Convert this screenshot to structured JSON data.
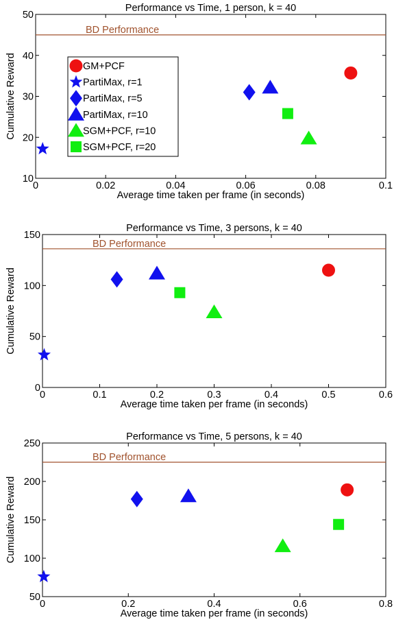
{
  "legend": {
    "entries": [
      {
        "label": "GM+PCF",
        "marker": "circle",
        "color": "#ee1111"
      },
      {
        "label": "PartiMax, r=1",
        "marker": "star",
        "color": "#1111ee"
      },
      {
        "label": "PartiMax, r=5",
        "marker": "diamond",
        "color": "#1111ee"
      },
      {
        "label": "PartiMax, r=10",
        "marker": "triangle",
        "color": "#1111ee"
      },
      {
        "label": "SGM+PCF, r=10",
        "marker": "triangle",
        "color": "#11ee11"
      },
      {
        "label": "SGM+PCF, r=20",
        "marker": "square",
        "color": "#11ee11"
      }
    ]
  },
  "colors": {
    "baseline": "#a0522d",
    "axis": "#000000"
  },
  "chart_data": [
    {
      "type": "scatter",
      "title": "Performance vs Time, 1 person, k = 40",
      "xlabel": "Average time taken per frame (in seconds)",
      "ylabel": "Cumulative Reward",
      "xlim": [
        0,
        0.1
      ],
      "ylim": [
        10,
        50
      ],
      "xticks": [
        "0",
        "0.02",
        "0.04",
        "0.06",
        "0.08",
        "0.1"
      ],
      "yticks": [
        "10",
        "20",
        "30",
        "40",
        "50"
      ],
      "hline": {
        "label": "BD Performance",
        "y": 45
      },
      "legend_position": "top-left",
      "series": [
        {
          "name": "GM+PCF",
          "points": [
            [
              0.09,
              35.7
            ]
          ]
        },
        {
          "name": "PartiMax, r=1",
          "points": [
            [
              0.002,
              17.2
            ]
          ]
        },
        {
          "name": "PartiMax, r=5",
          "points": [
            [
              0.061,
              31
            ]
          ]
        },
        {
          "name": "PartiMax, r=10",
          "points": [
            [
              0.067,
              32.2
            ]
          ]
        },
        {
          "name": "SGM+PCF, r=10",
          "points": [
            [
              0.078,
              19.8
            ]
          ]
        },
        {
          "name": "SGM+PCF, r=20",
          "points": [
            [
              0.072,
              25.8
            ]
          ]
        }
      ]
    },
    {
      "type": "scatter",
      "title": "Performance vs Time, 3 persons, k = 40",
      "xlabel": "Average time taken per frame (in seconds)",
      "ylabel": "Cumulative Reward",
      "xlim": [
        0,
        0.6
      ],
      "ylim": [
        0,
        150
      ],
      "xticks": [
        "0",
        "0.1",
        "0.2",
        "0.3",
        "0.4",
        "0.5",
        "0.6"
      ],
      "yticks": [
        "0",
        "50",
        "100",
        "150"
      ],
      "hline": {
        "label": "BD Performance",
        "y": 136
      },
      "legend_position": "none",
      "series": [
        {
          "name": "GM+PCF",
          "points": [
            [
              0.5,
              115
            ]
          ]
        },
        {
          "name": "PartiMax, r=1",
          "points": [
            [
              0.003,
              32
            ]
          ]
        },
        {
          "name": "PartiMax, r=5",
          "points": [
            [
              0.13,
              106
            ]
          ]
        },
        {
          "name": "PartiMax, r=10",
          "points": [
            [
              0.2,
              112
            ]
          ]
        },
        {
          "name": "SGM+PCF, r=10",
          "points": [
            [
              0.3,
              74
            ]
          ]
        },
        {
          "name": "SGM+PCF, r=20",
          "points": [
            [
              0.24,
              93
            ]
          ]
        }
      ]
    },
    {
      "type": "scatter",
      "title": "Performance vs Time, 5 persons, k = 40",
      "xlabel": "Average time taken per frame (in seconds)",
      "ylabel": "Cumulative Reward",
      "xlim": [
        0,
        0.8
      ],
      "ylim": [
        50,
        250
      ],
      "xticks": [
        "0",
        "0.2",
        "0.4",
        "0.6",
        "0.8"
      ],
      "yticks": [
        "50",
        "100",
        "150",
        "200",
        "250"
      ],
      "hline": {
        "label": "BD Performance",
        "y": 225
      },
      "legend_position": "none",
      "series": [
        {
          "name": "GM+PCF",
          "points": [
            [
              0.71,
              189
            ]
          ]
        },
        {
          "name": "PartiMax, r=1",
          "points": [
            [
              0.003,
              76
            ]
          ]
        },
        {
          "name": "PartiMax, r=5",
          "points": [
            [
              0.22,
              177
            ]
          ]
        },
        {
          "name": "PartiMax, r=10",
          "points": [
            [
              0.34,
              181
            ]
          ]
        },
        {
          "name": "SGM+PCF, r=10",
          "points": [
            [
              0.56,
              116
            ]
          ]
        },
        {
          "name": "SGM+PCF, r=20",
          "points": [
            [
              0.69,
              144
            ]
          ]
        }
      ]
    }
  ]
}
